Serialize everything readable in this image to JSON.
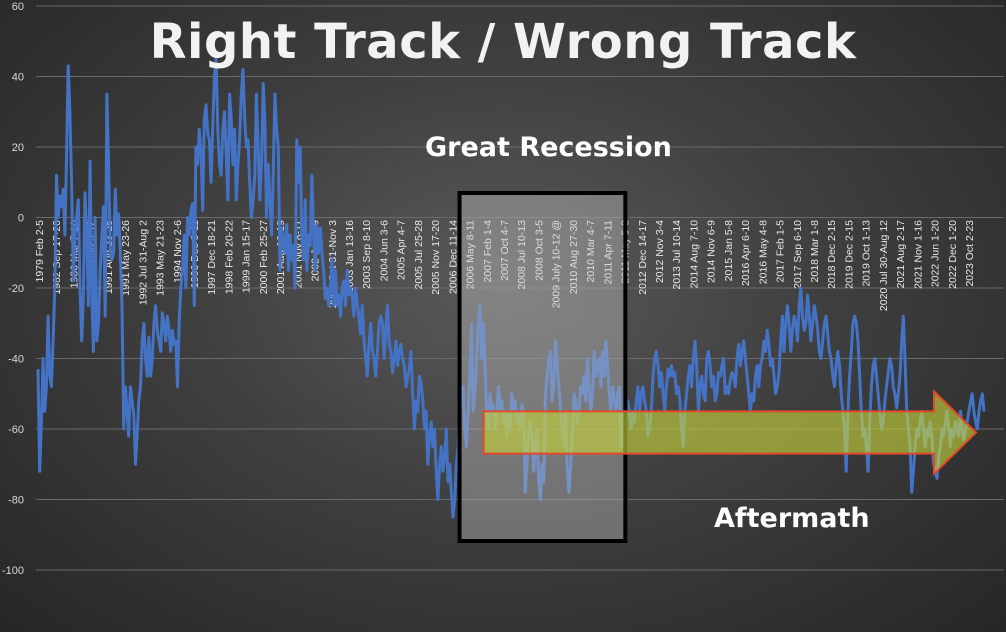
{
  "chart_data": {
    "type": "line",
    "title": "Right Track / Wrong Track",
    "xlabel": "",
    "ylabel": "",
    "ylim": [
      -100,
      60
    ],
    "yticks": [
      60,
      40,
      20,
      0,
      -20,
      -40,
      -60,
      -80,
      -100
    ],
    "grid": true,
    "legend": "none",
    "x_tick_labels": [
      "1979 Feb 2-5",
      "1982 Sep 17-20",
      "1986 Mar 7-10",
      "1990 Aug 9-12",
      "1991 Aug 23-25",
      "1991 May 23-26",
      "1992 Jul 31-Aug 2",
      "1993 May 21-23",
      "1994 Nov 2-6",
      "1996 Dec 9-11",
      "1997 Dec 18-21",
      "1998 Feb 20-22",
      "1999 Jan 15-17",
      "2000 Feb 25-27",
      "2001 Aug 16-19",
      "2001 Nov 8-11",
      "2002 Jan 7-9",
      "2002 Oct 31-Nov 3",
      "2003 Jan 13-16",
      "2003 Sep 8-10",
      "2004 Jun 3-6",
      "2005 Apr 4-7",
      "2005 Jul 25-28",
      "2005 Nov 17-20",
      "2006 Dec 11-14",
      "2006 May 8-11",
      "2007 Feb 1-4",
      "2007 Oct 4-7",
      "2008 Jul 10-13",
      "2008 Oct 3-5",
      "2009 July 10-12 @",
      "2010 Aug 27-30",
      "2010 Mar 4-7",
      "2011 Apr 7-11",
      "2011 May 5-8",
      "2012 Dec 14-17",
      "2012 Nov 3-4",
      "2013 Jul 10-14",
      "2014 Aug 7-10",
      "2014 Nov 6-9",
      "2015 Jan 5-8",
      "2016 Apr 6-10",
      "2016 May 4-8",
      "2017 Feb 1-5",
      "2017 Sep 6-10",
      "2018 Mar 1-8",
      "2018 Dec 2-15",
      "2019 Dec 2-15",
      "2019 Oct 1-13",
      "2020 Jul 30-Aug 12",
      "2021 Aug 2-17",
      "2021 Nov 1-16",
      "2022 Jun 1-20",
      "2022 Dec 1-20",
      "2023 Oct 2-23"
    ],
    "series": [
      {
        "color": "#4472c4",
        "values": [
          -43,
          -72,
          -58,
          -40,
          -55,
          -48,
          -28,
          -45,
          -48,
          -35,
          -20,
          12,
          0,
          6,
          3,
          8,
          -5,
          18,
          43,
          30,
          10,
          -18,
          -5,
          0,
          5,
          -20,
          -35,
          -22,
          7,
          -5,
          -25,
          16,
          -22,
          -38,
          0,
          -35,
          -30,
          -15,
          -5,
          3,
          -28,
          35,
          15,
          -10,
          -12,
          -10,
          8,
          -5,
          1,
          -10,
          -25,
          -60,
          -48,
          -55,
          -62,
          -48,
          -52,
          -56,
          -70,
          -62,
          -52,
          -48,
          -35,
          -30,
          -40,
          -45,
          -34,
          -45,
          -40,
          -30,
          -25,
          -32,
          -35,
          -38,
          -27,
          -30,
          -35,
          -28,
          -32,
          -38,
          -32,
          -36,
          -35,
          -48,
          -30,
          -20,
          -15,
          -5,
          -20,
          0,
          -5,
          2,
          4,
          -25,
          20,
          15,
          25,
          18,
          2,
          28,
          32,
          24,
          22,
          10,
          25,
          40,
          45,
          25,
          15,
          12,
          25,
          30,
          18,
          5,
          35,
          28,
          15,
          25,
          5,
          15,
          22,
          35,
          42,
          28,
          20,
          22,
          10,
          0,
          5,
          12,
          35,
          20,
          5,
          15,
          38,
          28,
          0,
          15,
          5,
          -5,
          12,
          35,
          25,
          20,
          -15,
          -3,
          -6,
          -10,
          -2,
          -15,
          -5,
          -12,
          -8,
          -20,
          22,
          10,
          20,
          -5,
          -12,
          5,
          -15,
          -5,
          -8,
          12,
          -5,
          -15,
          -2,
          -10,
          -3,
          -10,
          -15,
          -23,
          -20,
          -25,
          -20,
          -12,
          -25,
          -15,
          -25,
          -22,
          -28,
          -20,
          -18,
          -25,
          -15,
          -22,
          -20,
          -22,
          -28,
          -20,
          -25,
          -28,
          -33,
          -25,
          -35,
          -40,
          -45,
          -36,
          -30,
          -38,
          -40,
          -45,
          -38,
          -30,
          -28,
          -30,
          -40,
          -32,
          -25,
          -36,
          -38,
          -44,
          -40,
          -35,
          -42,
          -38,
          -36,
          -40,
          -42,
          -48,
          -45,
          -43,
          -38,
          -50,
          -60,
          -52,
          -55,
          -45,
          -47,
          -52,
          -60,
          -55,
          -70,
          -62,
          -58,
          -65,
          -60,
          -72,
          -80,
          -70,
          -65,
          -72,
          -68,
          -60,
          -75,
          -70,
          -78,
          -85,
          -80,
          -70,
          -65,
          -55,
          -50,
          -48,
          -60,
          -65,
          -55,
          -45,
          -30,
          -55,
          -50,
          -40,
          -30,
          -25,
          -40,
          -30,
          -42,
          -55,
          -60,
          -50,
          -55,
          -53,
          -60,
          -58,
          -48,
          -55,
          -52,
          -58,
          -55,
          -62,
          -55,
          -60,
          -50,
          -55,
          -52,
          -58,
          -55,
          -60,
          -53,
          -55,
          -78,
          -70,
          -60,
          -58,
          -62,
          -72,
          -65,
          -60,
          -75,
          -80,
          -70,
          -75,
          -50,
          -45,
          -40,
          -38,
          -52,
          -48,
          -35,
          -42,
          -48,
          -55,
          -60,
          -65,
          -55,
          -72,
          -78,
          -70,
          -62,
          -50,
          -52,
          -58,
          -55,
          -48,
          -50,
          -45,
          -52,
          -40,
          -48,
          -55,
          -50,
          -38,
          -45,
          -42,
          -40,
          -48,
          -38,
          -45,
          -35,
          -42,
          -50,
          -55,
          -48,
          -52,
          -55,
          -50,
          -48,
          -65,
          -58,
          -55,
          -58,
          -52,
          -55,
          -60,
          -55,
          -58,
          -52,
          -48,
          -55,
          -50,
          -48,
          -52,
          -55,
          -62,
          -60,
          -55,
          -45,
          -40,
          -38,
          -42,
          -48,
          -44,
          -50,
          -55,
          -48,
          -43,
          -45,
          -42,
          -45,
          -44,
          -50,
          -48,
          -52,
          -60,
          -65,
          -55,
          -50,
          -45,
          -42,
          -48,
          -40,
          -35,
          -42,
          -55,
          -48,
          -45,
          -50,
          -52,
          -40,
          -38,
          -42,
          -48,
          -45,
          -52,
          -50,
          -44,
          -45,
          -42,
          -40,
          -50,
          -48,
          -50,
          -46,
          -44,
          -45,
          -48,
          -40,
          -36,
          -42,
          -38,
          -35,
          -40,
          -45,
          -50,
          -55,
          -50,
          -52,
          -45,
          -42,
          -48,
          -42,
          -40,
          -35,
          -38,
          -32,
          -36,
          -42,
          -40,
          -45,
          -50,
          -48,
          -44,
          -35,
          -28,
          -38,
          -30,
          -25,
          -30,
          -38,
          -32,
          -28,
          -30,
          -35,
          -25,
          -20,
          -28,
          -32,
          -30,
          -22,
          -28,
          -35,
          -30,
          -25,
          -28,
          -32,
          -38,
          -40,
          -35,
          -30,
          -28,
          -33,
          -38,
          -40,
          -45,
          -48,
          -42,
          -38,
          -42,
          -50,
          -55,
          -60,
          -72,
          -55,
          -45,
          -38,
          -30,
          -28,
          -30,
          -35,
          -45,
          -55,
          -62,
          -60,
          -65,
          -72,
          -58,
          -48,
          -42,
          -40,
          -45,
          -50,
          -55,
          -60,
          -58,
          -52,
          -48,
          -44,
          -40,
          -42,
          -48,
          -50,
          -54,
          -50,
          -45,
          -35,
          -28,
          -40,
          -55,
          -60,
          -65,
          -78,
          -72,
          -65,
          -60,
          -62,
          -58,
          -55,
          -60,
          -65,
          -60,
          -62,
          -58,
          -62,
          -70,
          -72,
          -74,
          -68,
          -65,
          -60,
          -62,
          -58,
          -55,
          -60,
          -65,
          -60,
          -62,
          -58,
          -60,
          -62,
          -55,
          -60,
          -63,
          -60,
          -58,
          -55,
          -52,
          -50,
          -55,
          -58,
          -60,
          -55,
          -52,
          -50,
          -55
        ]
      }
    ],
    "annotations": [
      {
        "type": "box",
        "label": "Great Recession",
        "x_start": "2006 May 8-11",
        "x_end": "2011 Apr 7-11"
      },
      {
        "type": "arrow",
        "label": "Aftermath",
        "x_start": "2006 May 8-11",
        "x_end": "2023 Oct 2-23",
        "y_range": [
          -67,
          -55
        ],
        "color": "#c8d43a"
      }
    ]
  }
}
